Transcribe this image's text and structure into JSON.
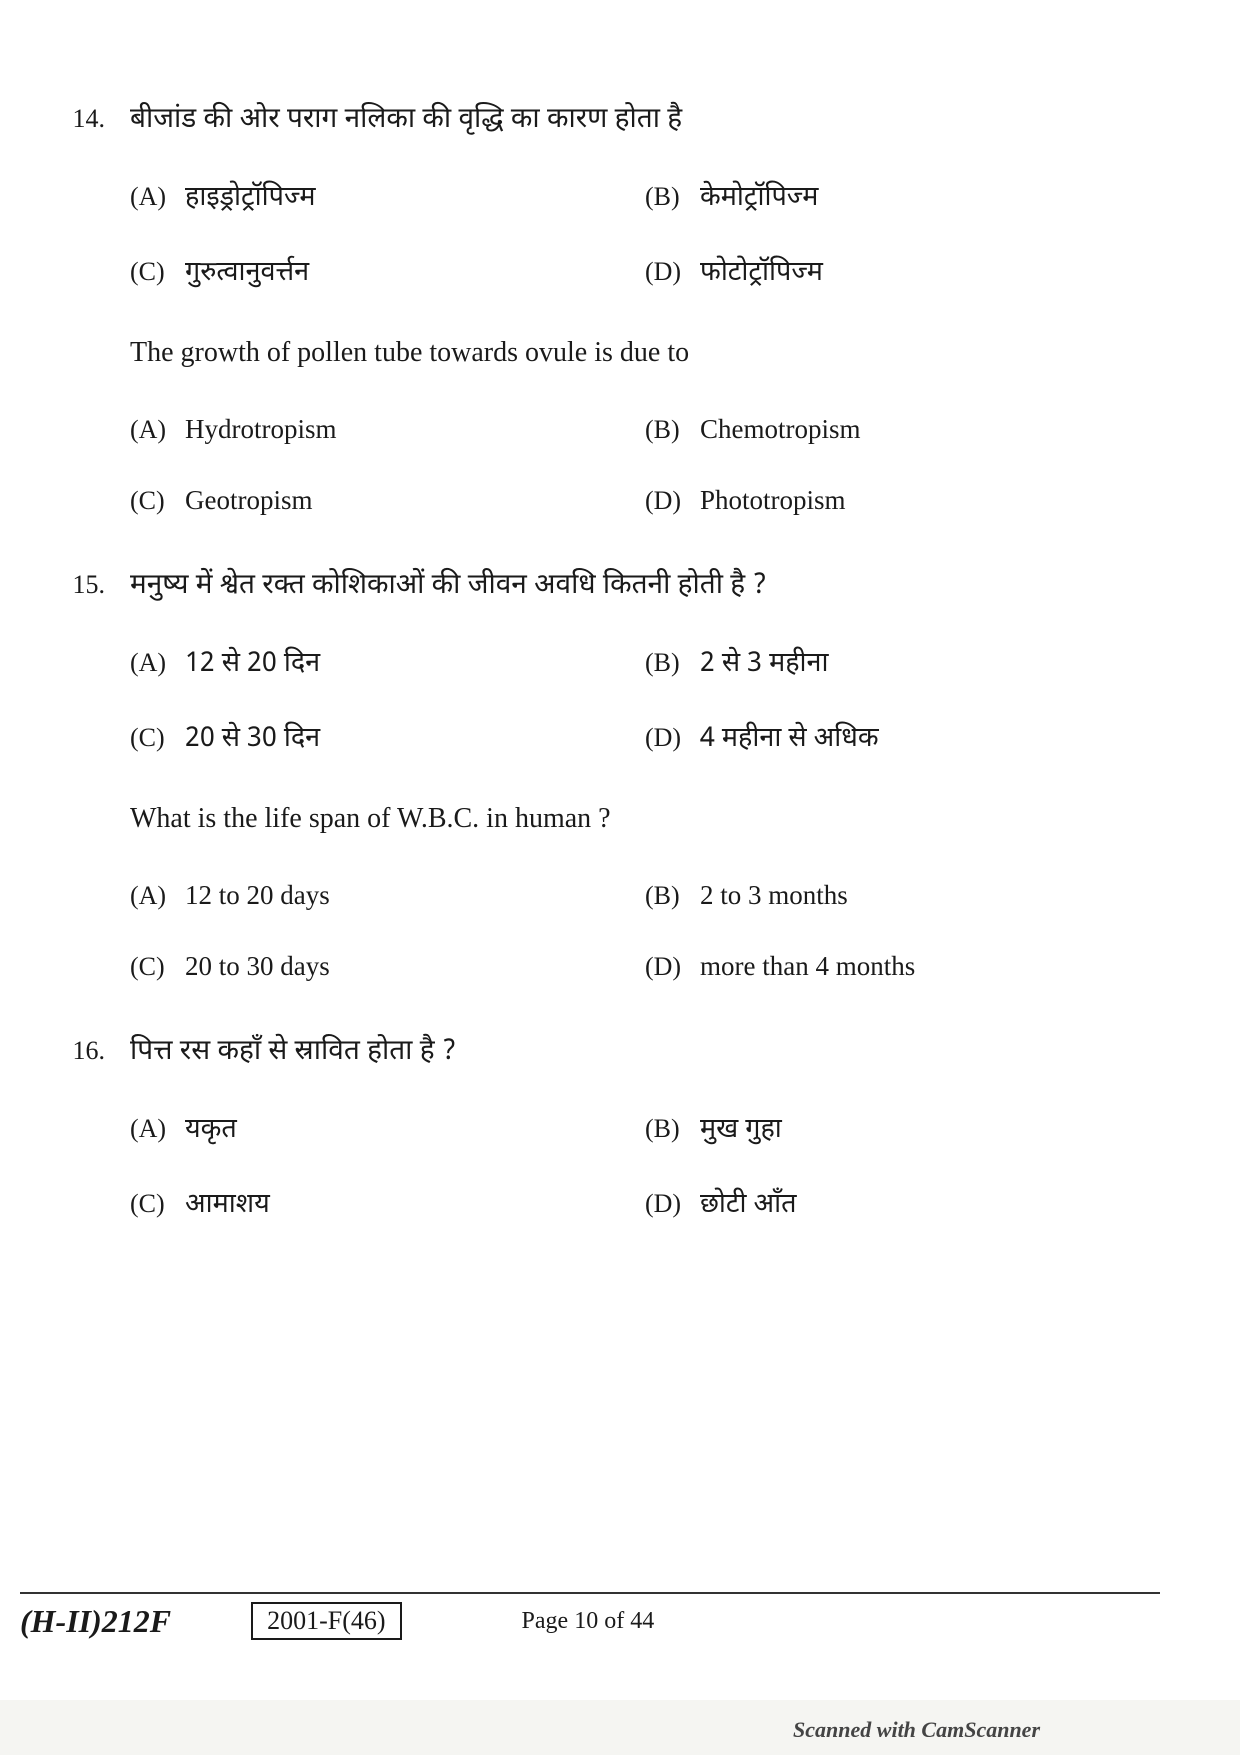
{
  "questions": [
    {
      "number": "14.",
      "hindi_text": "बीजांड की ओर पराग नलिका की वृद्धि का कारण होता है",
      "hindi_options": {
        "A": "हाइड्रोट्रॉपिज्म",
        "B": "केमोट्रॉपिज्म",
        "C": "गुरुत्वानुवर्त्तन",
        "D": "फोटोट्रॉपिज्म"
      },
      "english_text": "The growth of pollen tube towards ovule is due to",
      "english_options": {
        "A": "Hydrotropism",
        "B": "Chemotropism",
        "C": "Geotropism",
        "D": "Phototropism"
      }
    },
    {
      "number": "15.",
      "hindi_text": "मनुष्य में श्वेत रक्त कोशिकाओं की जीवन अवधि कितनी होती है ?",
      "hindi_options": {
        "A": "12 से 20 दिन",
        "B": "2 से 3 महीना",
        "C": "20 से 30 दिन",
        "D": "4 महीना से अधिक"
      },
      "english_text": "What is the life span of W.B.C. in human ?",
      "english_options": {
        "A": "12 to 20 days",
        "B": "2 to 3 months",
        "C": "20 to 30 days",
        "D": "more than 4 months"
      }
    },
    {
      "number": "16.",
      "hindi_text": "पित्त रस कहाँ से स्रावित होता है ?",
      "hindi_options": {
        "A": "यकृत",
        "B": "मुख गुहा",
        "C": "आमाशय",
        "D": "छोटी आँत"
      }
    }
  ],
  "option_labels": {
    "A": "(A)",
    "B": "(B)",
    "C": "(C)",
    "D": "(D)"
  },
  "footer": {
    "left": "(H-II)212F",
    "box": "2001-F(46)",
    "page": "Page 10 of 44"
  },
  "scanned_text": "Scanned with CamScanner"
}
